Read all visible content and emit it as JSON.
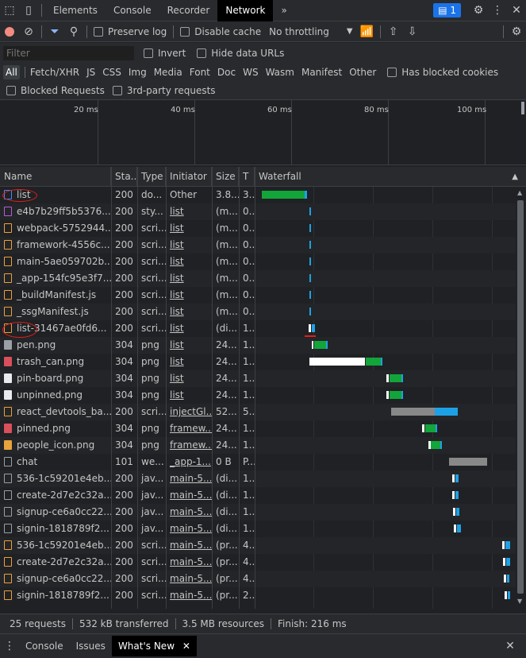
{
  "tabbar": {
    "tabs": [
      "Elements",
      "Console",
      "Recorder",
      "Network"
    ],
    "active": "Network",
    "more": "»",
    "issues_count": "1"
  },
  "toolbar": {
    "preserve_log": "Preserve log",
    "disable_cache": "Disable cache",
    "throttling": "No throttling"
  },
  "filter": {
    "placeholder": "Filter",
    "invert": "Invert",
    "hide_data_urls": "Hide data URLs"
  },
  "types": [
    "All",
    "Fetch/XHR",
    "JS",
    "CSS",
    "Img",
    "Media",
    "Font",
    "Doc",
    "WS",
    "Wasm",
    "Manifest",
    "Other"
  ],
  "has_blocked_cookies": "Has blocked cookies",
  "blocked_requests": "Blocked Requests",
  "third_party": "3rd-party requests",
  "overview_ticks": [
    "20 ms",
    "40 ms",
    "60 ms",
    "80 ms",
    "100 ms"
  ],
  "columns": {
    "name": "Name",
    "status": "Sta...",
    "type": "Type",
    "initiator": "Initiator",
    "size": "Size",
    "time": "T",
    "waterfall": "Waterfall"
  },
  "requests": [
    {
      "name": "list",
      "status": "200",
      "type": "do...",
      "initiator": "Other",
      "size": "3.8...",
      "time": "3...",
      "icon": "doc-icon",
      "color": "#4a8af4",
      "link": false
    },
    {
      "name": "e4b7b29ff5b5376...",
      "status": "200",
      "type": "sty...",
      "initiator": "list",
      "size": "(m...",
      "time": "0...",
      "icon": "css-icon",
      "color": "#b15fd6",
      "link": true
    },
    {
      "name": "webpack-5752944...",
      "status": "200",
      "type": "scri...",
      "initiator": "list",
      "size": "(m...",
      "time": "0...",
      "icon": "js-icon",
      "color": "#e8a33d",
      "link": true
    },
    {
      "name": "framework-4556c...",
      "status": "200",
      "type": "scri...",
      "initiator": "list",
      "size": "(m...",
      "time": "0...",
      "icon": "js-icon",
      "color": "#e8a33d",
      "link": true
    },
    {
      "name": "main-5ae059702b...",
      "status": "200",
      "type": "scri...",
      "initiator": "list",
      "size": "(m...",
      "time": "0...",
      "icon": "js-icon",
      "color": "#e8a33d",
      "link": true
    },
    {
      "name": "_app-154fc95e3f7...",
      "status": "200",
      "type": "scri...",
      "initiator": "list",
      "size": "(m...",
      "time": "0...",
      "icon": "js-icon",
      "color": "#e8a33d",
      "link": true
    },
    {
      "name": "_buildManifest.js",
      "status": "200",
      "type": "scri...",
      "initiator": "list",
      "size": "(m...",
      "time": "0...",
      "icon": "js-icon",
      "color": "#e8a33d",
      "link": true
    },
    {
      "name": "_ssgManifest.js",
      "status": "200",
      "type": "scri...",
      "initiator": "list",
      "size": "(m...",
      "time": "0...",
      "icon": "js-icon",
      "color": "#e8a33d",
      "link": true
    },
    {
      "name": "list-31467ae0fd6...",
      "status": "200",
      "type": "scri...",
      "initiator": "list",
      "size": "(di...",
      "time": "1...",
      "icon": "js-icon",
      "color": "#e8a33d",
      "link": true
    },
    {
      "name": "pen.png",
      "status": "304",
      "type": "png",
      "initiator": "list",
      "size": "24...",
      "time": "1...",
      "icon": "image-icon",
      "color": "#9aa0a6",
      "link": true
    },
    {
      "name": "trash_can.png",
      "status": "304",
      "type": "png",
      "initiator": "list",
      "size": "24...",
      "time": "1...",
      "icon": "image-icon",
      "color": "#d94f5c",
      "link": true
    },
    {
      "name": "pin-board.png",
      "status": "304",
      "type": "png",
      "initiator": "list",
      "size": "24...",
      "time": "1...",
      "icon": "image-icon",
      "color": "#e8eaed",
      "link": true
    },
    {
      "name": "unpinned.png",
      "status": "304",
      "type": "png",
      "initiator": "list",
      "size": "24...",
      "time": "1...",
      "icon": "image-icon",
      "color": "#e8eaed",
      "link": true
    },
    {
      "name": "react_devtools_ba...",
      "status": "200",
      "type": "scri...",
      "initiator": "injectGl...",
      "size": "52...",
      "time": "5...",
      "icon": "js-icon",
      "color": "#e8a33d",
      "link": true
    },
    {
      "name": "pinned.png",
      "status": "304",
      "type": "png",
      "initiator": "framew...",
      "size": "24...",
      "time": "1...",
      "icon": "image-icon",
      "color": "#d94f5c",
      "link": true
    },
    {
      "name": "people_icon.png",
      "status": "304",
      "type": "png",
      "initiator": "framew...",
      "size": "24...",
      "time": "1...",
      "icon": "image-icon",
      "color": "#e8a33d",
      "link": true
    },
    {
      "name": "chat",
      "status": "101",
      "type": "we...",
      "initiator": "_app-1...",
      "size": "0 B",
      "time": "P...",
      "icon": "websocket-icon",
      "color": "#9aa0a6",
      "link": true
    },
    {
      "name": "536-1c59201e4eb...",
      "status": "200",
      "type": "jav...",
      "initiator": "main-5...",
      "size": "(di...",
      "time": "1...",
      "icon": "file-icon",
      "color": "#9aa0a6",
      "link": true
    },
    {
      "name": "create-2d7e2c32a...",
      "status": "200",
      "type": "jav...",
      "initiator": "main-5...",
      "size": "(di...",
      "time": "1...",
      "icon": "file-icon",
      "color": "#9aa0a6",
      "link": true
    },
    {
      "name": "signup-ce6a0cc22...",
      "status": "200",
      "type": "jav...",
      "initiator": "main-5...",
      "size": "(di...",
      "time": "1...",
      "icon": "file-icon",
      "color": "#9aa0a6",
      "link": true
    },
    {
      "name": "signin-1818789f2...",
      "status": "200",
      "type": "jav...",
      "initiator": "main-5...",
      "size": "(di...",
      "time": "1...",
      "icon": "file-icon",
      "color": "#9aa0a6",
      "link": true
    },
    {
      "name": "536-1c59201e4eb...",
      "status": "200",
      "type": "scri...",
      "initiator": "main-5...",
      "size": "(pr...",
      "time": "4...",
      "icon": "js-icon",
      "color": "#e8a33d",
      "link": true
    },
    {
      "name": "create-2d7e2c32a...",
      "status": "200",
      "type": "scri...",
      "initiator": "main-5...",
      "size": "(pr...",
      "time": "4...",
      "icon": "js-icon",
      "color": "#e8a33d",
      "link": true
    },
    {
      "name": "signup-ce6a0cc22...",
      "status": "200",
      "type": "scri...",
      "initiator": "main-5...",
      "size": "(pr...",
      "time": "4...",
      "icon": "js-icon",
      "color": "#e8a33d",
      "link": true
    },
    {
      "name": "signin-1818789f2...",
      "status": "200",
      "type": "scri...",
      "initiator": "main-5...",
      "size": "(pr...",
      "time": "2...",
      "icon": "js-icon",
      "color": "#e8a33d",
      "link": true
    }
  ],
  "status_bar": {
    "requests": "25 requests",
    "transferred": "532 kB transferred",
    "resources": "3.5 MB resources",
    "finish": "Finish: 216 ms"
  },
  "drawer": {
    "tabs": [
      "Console",
      "Issues",
      "What's New"
    ],
    "active": "What's New"
  },
  "colors": {
    "waiting": "#ffffff",
    "download": "#1da1e6",
    "ttfb": "#12a53a",
    "queue": "#888888",
    "annotation": "#e0201b"
  }
}
